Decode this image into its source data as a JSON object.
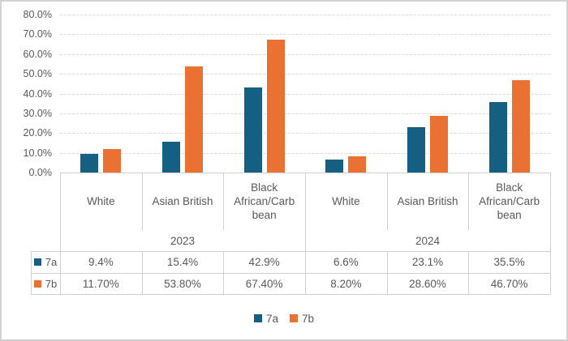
{
  "chart_data": {
    "type": "bar",
    "title": "",
    "xlabel": "",
    "ylabel": "",
    "grid": true,
    "y_axis": {
      "min": 0,
      "max": 80,
      "step": 10,
      "tick_labels": [
        "0.0%",
        "10.0%",
        "20.0%",
        "30.0%",
        "40.0%",
        "50.0%",
        "60.0%",
        "70.0%",
        "80.0%"
      ]
    },
    "groups": [
      {
        "year": "2023",
        "span": [
          0,
          2
        ]
      },
      {
        "year": "2024",
        "span": [
          3,
          5
        ]
      }
    ],
    "categories": [
      "White",
      "Asian British",
      "Black African/Carbbean",
      "White",
      "Asian British",
      "Black African/Carbbean"
    ],
    "category_display_lines": [
      [
        "White"
      ],
      [
        "Asian British"
      ],
      [
        "Black",
        "African/Carb",
        "bean"
      ],
      [
        "White"
      ],
      [
        "Asian British"
      ],
      [
        "Black",
        "African/Carb",
        "bean"
      ]
    ],
    "series": [
      {
        "name": "7a",
        "color": "#156082",
        "values": [
          9.4,
          15.4,
          42.9,
          6.6,
          23.1,
          35.5
        ],
        "display_values": [
          "9.4%",
          "15.4%",
          "42.9%",
          "6.6%",
          "23.1%",
          "35.5%"
        ]
      },
      {
        "name": "7b",
        "color": "#E97132",
        "values": [
          11.7,
          53.8,
          67.4,
          8.2,
          28.6,
          46.7
        ],
        "display_values": [
          "11.70%",
          "53.80%",
          "67.40%",
          "8.20%",
          "28.60%",
          "46.70%"
        ]
      }
    ],
    "legend": {
      "position": "bottom",
      "entries": [
        "7a",
        "7b"
      ]
    }
  },
  "colors": {
    "series_7a": "#156082",
    "series_7b": "#E97132",
    "text": "#595959",
    "gridline": "#d9d9d9",
    "table_border": "#d0d0d0",
    "frame_border": "#d2d2d2",
    "background": "#ffffff"
  }
}
